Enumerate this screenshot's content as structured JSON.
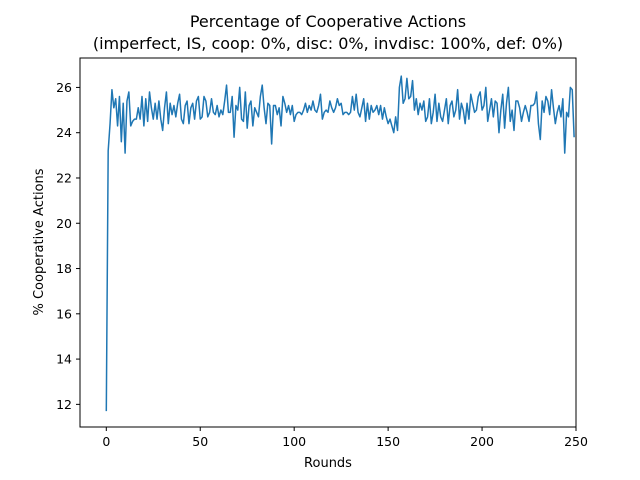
{
  "chart_data": {
    "type": "line",
    "title": "Percentage of Cooperative Actions",
    "subtitle": "(imperfect, IS, coop: 0%, disc: 0%, invdisc: 100%, def: 0%)",
    "xlabel": "Rounds",
    "ylabel": "% Cooperative Actions",
    "xlim": [
      -14,
      250
    ],
    "ylim": [
      11,
      27.3
    ],
    "xticks": [
      0,
      50,
      100,
      150,
      200,
      250
    ],
    "yticks": [
      12,
      14,
      16,
      18,
      20,
      22,
      24,
      26
    ],
    "grid": false,
    "legend": "none",
    "line_color": "#1f77b4",
    "series": [
      {
        "values": [
          11.7,
          23.2,
          24.4,
          25.9,
          25.1,
          25.5,
          24.3,
          25.6,
          23.6,
          25.3,
          23.1,
          25.4,
          25.8,
          24.3,
          24.5,
          24.6,
          24.6,
          25.1,
          24.6,
          25.6,
          24.3,
          25.5,
          24.5,
          25.8,
          25.1,
          24.6,
          25.3,
          24.6,
          25.4,
          24.6,
          24.1,
          25.1,
          25.8,
          24.4,
          25.3,
          24.8,
          25.2,
          24.7,
          25.3,
          25.7,
          24.6,
          24.4,
          25.2,
          25.4,
          24.4,
          25.1,
          25.3,
          24.6,
          25.4,
          25.6,
          24.6,
          24.7,
          25.6,
          25.4,
          24.7,
          24.9,
          25.5,
          24.9,
          24.8,
          25.2,
          24.7,
          25.0,
          24.8,
          25.4,
          26.1,
          24.9,
          24.9,
          25.6,
          23.8,
          25.2,
          25.0,
          26.0,
          24.6,
          24.5,
          25.8,
          24.2,
          25.2,
          25.4,
          24.3,
          25.1,
          24.9,
          24.7,
          25.6,
          26.1,
          25.1,
          24.4,
          25.3,
          25.2,
          23.5,
          25.2,
          25.2,
          24.8,
          25.1,
          24.3,
          25.6,
          25.3,
          24.9,
          25.2,
          24.8,
          25.2,
          24.5,
          24.8,
          24.9,
          24.9,
          24.8,
          25.0,
          25.3,
          24.9,
          25.2,
          25.0,
          25.4,
          25.0,
          24.9,
          25.2,
          25.7,
          24.6,
          24.9,
          25.0,
          24.9,
          25.4,
          25.1,
          24.9,
          25.1,
          25.5,
          25.2,
          25.3,
          24.8,
          24.9,
          24.9,
          24.8,
          24.9,
          25.6,
          25.0,
          25.7,
          24.9,
          24.7,
          25.1,
          25.5,
          24.5,
          25.3,
          24.6,
          25.2,
          24.9,
          25.0,
          25.2,
          24.8,
          25.2,
          24.6,
          25.1,
          24.7,
          24.4,
          24.6,
          24.3,
          24.0,
          24.7,
          24.1,
          26.0,
          26.5,
          25.3,
          25.5,
          26.4,
          25.5,
          25.6,
          26.3,
          25.0,
          25.5,
          24.8,
          25.3,
          25.0,
          25.4,
          24.5,
          24.7,
          25.5,
          24.4,
          24.9,
          25.7,
          24.5,
          25.3,
          24.7,
          24.5,
          25.0,
          25.5,
          24.4,
          25.2,
          25.4,
          24.7,
          25.0,
          25.9,
          24.6,
          25.3,
          25.0,
          24.4,
          25.3,
          24.6,
          25.7,
          25.3,
          24.9,
          25.0,
          25.6,
          25.8,
          25.0,
          25.2,
          26.0,
          24.5,
          25.0,
          25.5,
          24.7,
          25.4,
          25.3,
          24.0,
          25.0,
          25.7,
          24.2,
          25.3,
          26.0,
          24.5,
          25.0,
          24.1,
          25.4,
          25.4,
          25.1,
          24.5,
          24.9,
          25.2,
          24.9,
          24.5,
          25.2,
          25.2,
          25.3,
          25.8,
          24.4,
          23.7,
          25.4,
          24.9,
          25.6,
          25.4,
          24.8,
          25.9,
          25.1,
          24.4,
          24.9,
          25.2,
          24.7,
          25.5,
          23.1,
          24.9,
          24.7,
          26.0,
          25.9,
          23.8
        ]
      }
    ]
  }
}
